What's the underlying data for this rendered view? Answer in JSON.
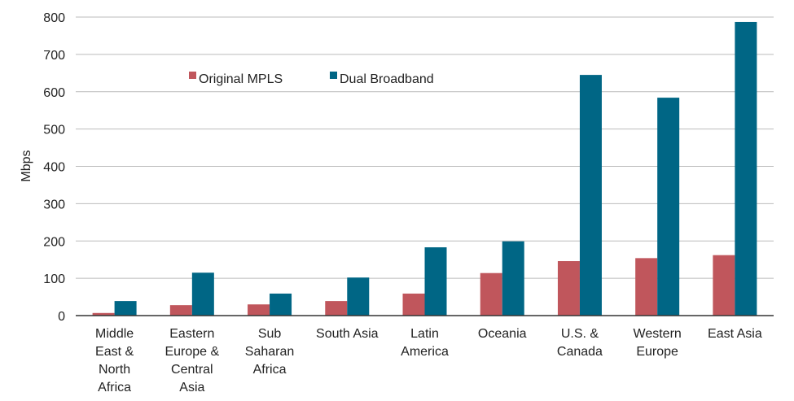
{
  "chart_data": {
    "type": "bar",
    "title": "",
    "xlabel": "",
    "ylabel": "Mbps",
    "ylim": [
      0,
      800
    ],
    "yticks": [
      0,
      100,
      200,
      300,
      400,
      500,
      600,
      700,
      800
    ],
    "grid": true,
    "legend_position": "top-left",
    "categories": [
      [
        "Middle",
        "East &",
        "North",
        "Africa"
      ],
      [
        "Eastern",
        "Europe &",
        "Central",
        "Asia"
      ],
      [
        "Sub",
        "Saharan",
        "Africa"
      ],
      [
        "South Asia"
      ],
      [
        "Latin",
        "America"
      ],
      [
        "Oceania"
      ],
      [
        "U.S. &",
        "Canada"
      ],
      [
        "Western",
        "Europe"
      ],
      [
        "East Asia"
      ]
    ],
    "series": [
      {
        "name": "Original MPLS",
        "color": "#c0565c",
        "values": [
          7,
          28,
          30,
          39,
          59,
          114,
          146,
          154,
          162
        ]
      },
      {
        "name": "Dual Broadband",
        "color": "#006685",
        "values": [
          39,
          115,
          59,
          102,
          183,
          199,
          645,
          584,
          787
        ]
      }
    ]
  }
}
